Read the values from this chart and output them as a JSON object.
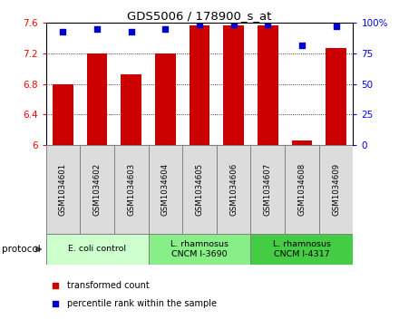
{
  "title": "GDS5006 / 178900_s_at",
  "samples": [
    "GSM1034601",
    "GSM1034602",
    "GSM1034603",
    "GSM1034604",
    "GSM1034605",
    "GSM1034606",
    "GSM1034607",
    "GSM1034608",
    "GSM1034609"
  ],
  "transformed_counts": [
    6.8,
    7.2,
    6.93,
    7.2,
    7.57,
    7.57,
    7.57,
    6.06,
    7.27
  ],
  "percentile_ranks": [
    93,
    95,
    93,
    95,
    99,
    99,
    99,
    82,
    97
  ],
  "ylim_left": [
    6.0,
    7.6
  ],
  "ylim_right": [
    0,
    100
  ],
  "yticks_left": [
    6.0,
    6.4,
    6.8,
    7.2,
    7.6
  ],
  "ytick_labels_left": [
    "6",
    "6.4",
    "6.8",
    "7.2",
    "7.6"
  ],
  "yticks_right": [
    0,
    25,
    50,
    75,
    100
  ],
  "ytick_labels_right": [
    "0",
    "25",
    "50",
    "75",
    "100%"
  ],
  "bar_color": "#cc0000",
  "dot_color": "#0000cc",
  "bar_width": 0.6,
  "protocol_groups": [
    {
      "indices": [
        0,
        1,
        2
      ],
      "label": "E. coli control",
      "color": "#ccffcc"
    },
    {
      "indices": [
        3,
        4,
        5
      ],
      "label": "L. rhamnosus\nCNCM I-3690",
      "color": "#88ee88"
    },
    {
      "indices": [
        6,
        7,
        8
      ],
      "label": "L. rhamnosus\nCNCM I-4317",
      "color": "#44cc44"
    }
  ],
  "protocol_label": "protocol",
  "legend_items": [
    {
      "label": "transformed count",
      "color": "#cc0000"
    },
    {
      "label": "percentile rank within the sample",
      "color": "#0000cc"
    }
  ],
  "sample_bg": "#dcdcdc",
  "grid_color": "black"
}
